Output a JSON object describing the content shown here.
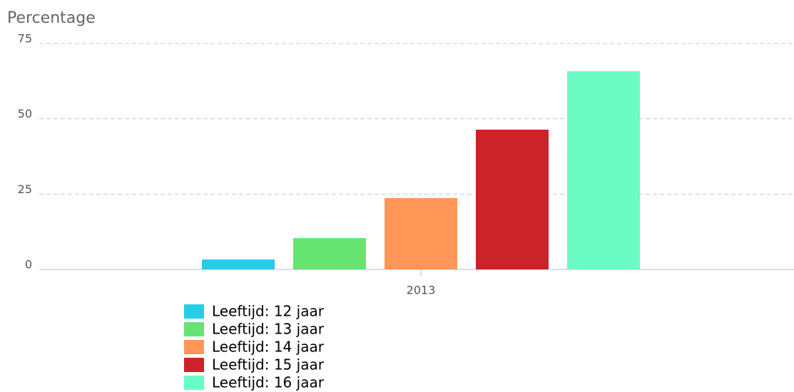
{
  "chart_data": {
    "type": "bar",
    "y_label": "Percentage",
    "categories": [
      "2013"
    ],
    "series": [
      {
        "name": "Leeftijd: 12 jaar",
        "color": "#26cde6",
        "values": [
          3.3
        ]
      },
      {
        "name": "Leeftijd: 13 jaar",
        "color": "#66e472",
        "values": [
          10.4
        ]
      },
      {
        "name": "Leeftijd: 14 jaar",
        "color": "#ff9658",
        "values": [
          23.7
        ]
      },
      {
        "name": "Leeftijd: 15 jaar",
        "color": "#cc2229",
        "values": [
          46.4
        ]
      },
      {
        "name": "Leeftijd: 16 jaar",
        "color": "#6afcc4",
        "values": [
          65.8
        ]
      }
    ],
    "ylim": [
      0,
      75
    ],
    "yticks": [
      0,
      25,
      50,
      75
    ],
    "grid": true
  }
}
